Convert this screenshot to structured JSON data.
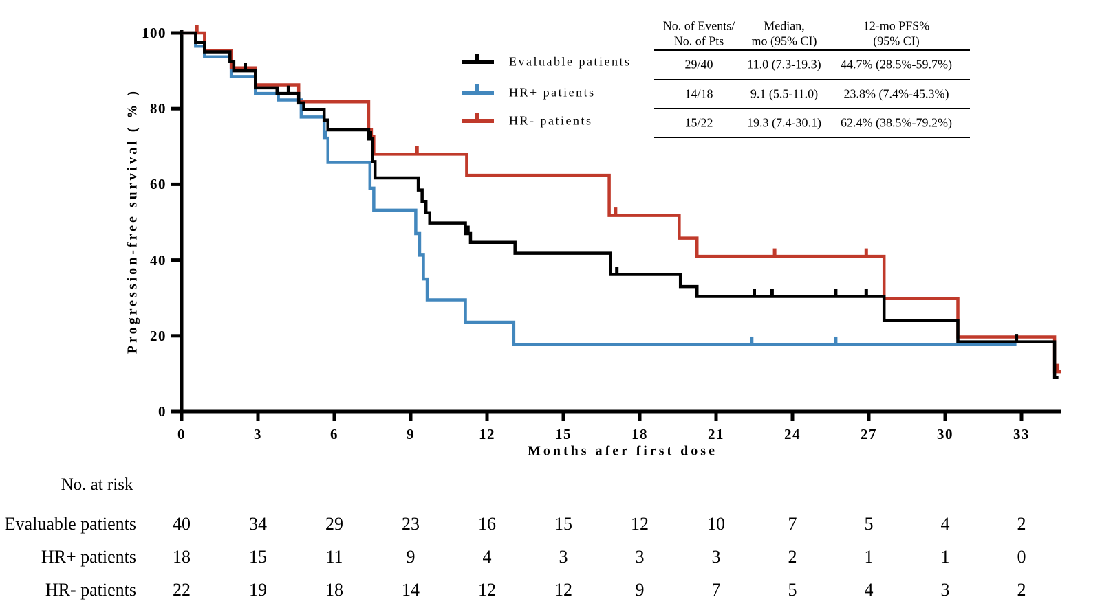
{
  "axes": {
    "ylabel": "Progression-free survival ( % )",
    "xlabel": "Months afer first dose",
    "yticks": [
      0,
      20,
      40,
      60,
      80,
      100
    ],
    "xticks": [
      0,
      3,
      6,
      9,
      12,
      15,
      18,
      21,
      24,
      27,
      30,
      33
    ]
  },
  "legend": {
    "items": [
      {
        "label": "Evaluable patients",
        "color": "#000000"
      },
      {
        "label": "HR+ patients",
        "color": "#4287bd"
      },
      {
        "label": "HR- patients",
        "color": "#c03a2b"
      }
    ]
  },
  "summary_table": {
    "headers": [
      {
        "line1": "No. of Events/",
        "line2": "No. of Pts"
      },
      {
        "line1": "Median,",
        "line2": "mo (95% CI)"
      },
      {
        "line1": "12-mo PFS%",
        "line2": "(95% CI)"
      }
    ],
    "rows": [
      {
        "events_pts": "29/40",
        "median": "11.0 (7.3-19.3)",
        "pfs12": "44.7% (28.5%-59.7%)"
      },
      {
        "events_pts": "14/18",
        "median": "9.1 (5.5-11.0)",
        "pfs12": "23.8% (7.4%-45.3%)"
      },
      {
        "events_pts": "15/22",
        "median": "19.3 (7.4-30.1)",
        "pfs12": "62.4% (38.5%-79.2%)"
      }
    ]
  },
  "risk_table": {
    "title": "No. at risk",
    "timepoints": [
      0,
      3,
      6,
      9,
      12,
      15,
      18,
      21,
      24,
      27,
      30,
      33
    ],
    "rows": [
      {
        "label": "Evaluable patients",
        "values": [
          40,
          34,
          29,
          23,
          16,
          15,
          12,
          10,
          7,
          5,
          4,
          2
        ]
      },
      {
        "label": "HR+ patients",
        "values": [
          18,
          15,
          11,
          9,
          4,
          3,
          3,
          3,
          2,
          1,
          1,
          0
        ]
      },
      {
        "label": "HR- patients",
        "values": [
          22,
          19,
          18,
          14,
          12,
          12,
          9,
          7,
          5,
          4,
          3,
          2
        ]
      }
    ]
  },
  "chart_data": {
    "type": "line",
    "subtype": "kaplan-meier-step",
    "title": "",
    "xlabel": "Months afer first dose",
    "ylabel": "Progression-free survival ( % )",
    "xlim": [
      0,
      34.8
    ],
    "ylim": [
      0,
      100
    ],
    "xticks": [
      0,
      3,
      6,
      9,
      12,
      15,
      18,
      21,
      24,
      27,
      30,
      33
    ],
    "yticks": [
      0,
      20,
      40,
      60,
      80,
      100
    ],
    "grid": false,
    "legend_position": "upper-center-left",
    "series": [
      {
        "name": "Evaluable patients",
        "color": "#000000",
        "n": 40,
        "events": 29,
        "median_mo": "11.0 (7.3-19.3)",
        "pfs_12mo": "44.7% (28.5%-59.7%)",
        "steps": [
          [
            0,
            100
          ],
          [
            0.55,
            97.5
          ],
          [
            0.9,
            95
          ],
          [
            1.9,
            92.5
          ],
          [
            2.05,
            90
          ],
          [
            2.9,
            85.5
          ],
          [
            3.75,
            84
          ],
          [
            4.6,
            81.5
          ],
          [
            4.8,
            79.8
          ],
          [
            5.6,
            77
          ],
          [
            5.75,
            74.4
          ],
          [
            7.35,
            72
          ],
          [
            7.5,
            66
          ],
          [
            7.6,
            61.7
          ],
          [
            9.3,
            58.5
          ],
          [
            9.45,
            55.5
          ],
          [
            9.6,
            52.5
          ],
          [
            9.75,
            49.8
          ],
          [
            11.15,
            47
          ],
          [
            11.35,
            44.7
          ],
          [
            13.1,
            41.8
          ],
          [
            16.85,
            36.2
          ],
          [
            19.6,
            33
          ],
          [
            20.25,
            30.4
          ],
          [
            27.6,
            24
          ],
          [
            30.5,
            18.4
          ],
          [
            34.3,
            9
          ]
        ],
        "end": 34.45,
        "censors": [
          [
            2.5,
            90
          ],
          [
            4.2,
            84
          ],
          [
            7.42,
            72
          ],
          [
            11.25,
            47
          ],
          [
            17.1,
            36.2
          ],
          [
            22.5,
            30.4
          ],
          [
            23.2,
            30.4
          ],
          [
            25.7,
            30.4
          ],
          [
            26.9,
            30.4
          ],
          [
            32.8,
            18.4
          ]
        ]
      },
      {
        "name": "HR+ patients",
        "color": "#4287bd",
        "n": 18,
        "events": 14,
        "median_mo": "9.1 (5.5-11.0)",
        "pfs_12mo": "23.8% (7.4%-45.3%)",
        "steps": [
          [
            0,
            100
          ],
          [
            0.55,
            96.5
          ],
          [
            0.9,
            93.7
          ],
          [
            1.95,
            88.5
          ],
          [
            2.9,
            84
          ],
          [
            3.8,
            82.3
          ],
          [
            4.7,
            77.8
          ],
          [
            5.6,
            72.2
          ],
          [
            5.75,
            65.8
          ],
          [
            7.4,
            59
          ],
          [
            7.55,
            53.2
          ],
          [
            9.2,
            47
          ],
          [
            9.35,
            41.3
          ],
          [
            9.5,
            35
          ],
          [
            9.65,
            29.5
          ],
          [
            11.15,
            23.6
          ],
          [
            13.05,
            17.7
          ]
        ],
        "end": 32.8,
        "censors": [
          [
            5.65,
            72.2
          ],
          [
            22.4,
            17.7
          ],
          [
            25.7,
            17.7
          ]
        ]
      },
      {
        "name": "HR- patients",
        "color": "#c03a2b",
        "n": 22,
        "events": 15,
        "median_mo": "19.3 (7.4-30.1)",
        "pfs_12mo": "62.4% (38.5%-79.2%)",
        "steps": [
          [
            0,
            100
          ],
          [
            0.9,
            95.4
          ],
          [
            1.95,
            90.8
          ],
          [
            2.9,
            86.3
          ],
          [
            4.6,
            81.8
          ],
          [
            7.35,
            72.7
          ],
          [
            7.55,
            68
          ],
          [
            11.2,
            62.4
          ],
          [
            16.8,
            51.8
          ],
          [
            19.55,
            45.8
          ],
          [
            20.25,
            41
          ],
          [
            27.6,
            29.8
          ],
          [
            30.5,
            19.7
          ],
          [
            34.3,
            10.5
          ]
        ],
        "end": 34.55,
        "censors": [
          [
            0.6,
            100
          ],
          [
            7.45,
            72.7
          ],
          [
            9.25,
            68
          ],
          [
            17.05,
            51.8
          ],
          [
            23.3,
            41
          ],
          [
            26.9,
            41
          ],
          [
            34.42,
            10.5
          ]
        ]
      }
    ]
  }
}
